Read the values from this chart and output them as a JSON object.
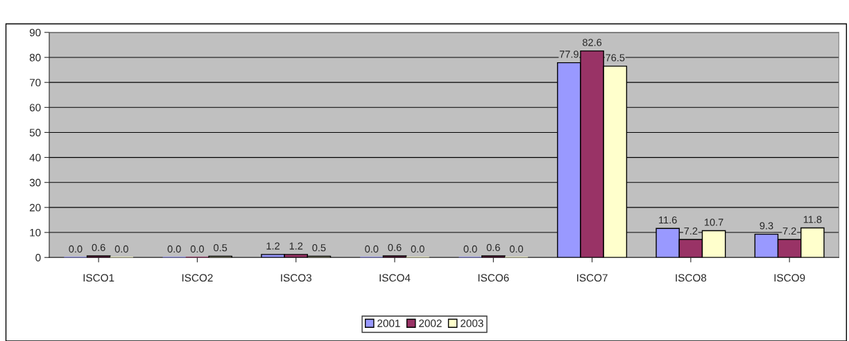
{
  "chart_data": {
    "type": "bar",
    "categories": [
      "ISCO1",
      "ISCO2",
      "ISCO3",
      "ISCO4",
      "ISCO6",
      "ISCO7",
      "ISCO8",
      "ISCO9"
    ],
    "series": [
      {
        "name": "2001",
        "color": "#9999ff",
        "values": [
          0,
          0,
          1.2,
          0,
          0,
          77.9,
          11.6,
          9.3
        ],
        "value_labels": [
          "0.0",
          "0.0",
          "1.2",
          "0.0",
          "0.0",
          "77.9",
          "11.6",
          "9.3"
        ]
      },
      {
        "name": "2002",
        "color": "#993366",
        "values": [
          0.6,
          0,
          1.2,
          0.6,
          0.6,
          82.6,
          7.2,
          7.2
        ],
        "value_labels": [
          "0.6",
          "0.0",
          "1.2",
          "0.6",
          "0.6",
          "82.6",
          "7.2",
          "7.2"
        ]
      },
      {
        "name": "2003",
        "color": "#ffffcc",
        "values": [
          0,
          0.5,
          0.5,
          0,
          0,
          76.5,
          10.7,
          11.8
        ],
        "value_labels": [
          "0.0",
          "0.5",
          "0.5",
          "0.0",
          "0.0",
          "76.5",
          "10.7",
          "11.8"
        ]
      }
    ],
    "ylim": [
      0,
      90
    ],
    "yticks": [
      0,
      10,
      20,
      30,
      40,
      50,
      60,
      70,
      80,
      90
    ],
    "grid": "y",
    "legend": "bottom"
  }
}
